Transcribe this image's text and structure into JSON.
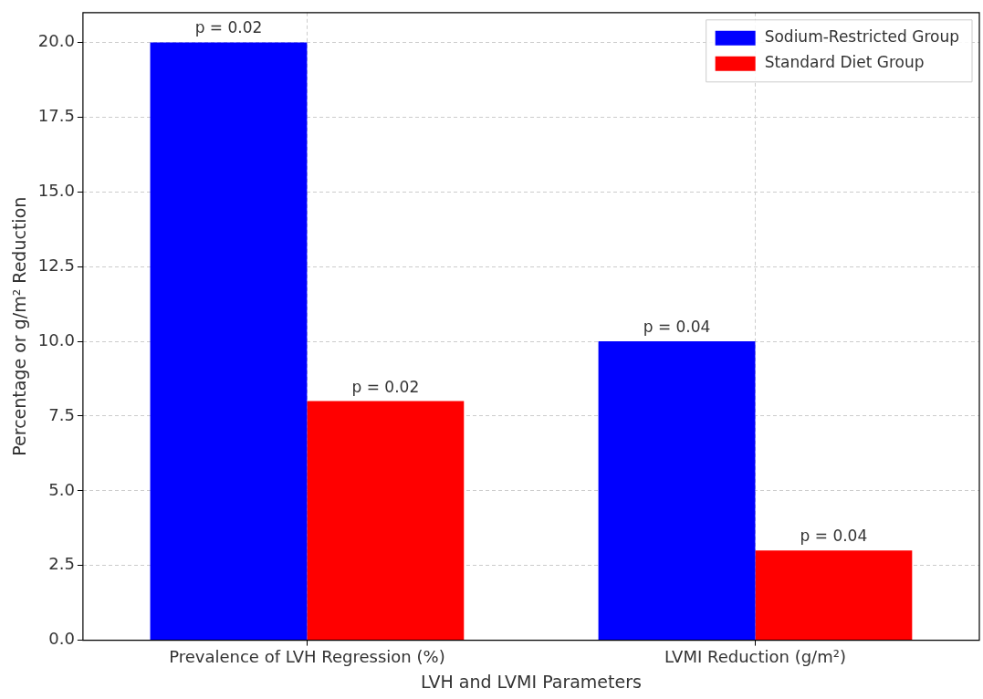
{
  "chart_data": {
    "type": "bar",
    "xlabel": "LVH and LVMI Parameters",
    "ylabel": "Percentage or g/m² Reduction",
    "categories": [
      "Prevalence of LVH Regression (%)",
      "LVMI Reduction (g/m²)"
    ],
    "series": [
      {
        "name": "Sodium-Restricted Group",
        "color": "#0000ff",
        "values": [
          20,
          10
        ]
      },
      {
        "name": "Standard Diet Group",
        "color": "#ff0000",
        "values": [
          8,
          3
        ]
      }
    ],
    "annotations": [
      {
        "text": "p = 0.02",
        "x": "Prevalence of LVH Regression (%)",
        "y": 20
      },
      {
        "text": "p = 0.02",
        "x": "Prevalence of LVH Regression (%)",
        "y": 8
      },
      {
        "text": "p = 0.04",
        "x": "LVMI Reduction (g/m²)",
        "y": 10
      },
      {
        "text": "p = 0.04",
        "x": "LVMI Reduction (g/m²)",
        "y": 3
      }
    ],
    "ylim": [
      0,
      21
    ],
    "yticks": [
      {
        "value": 0,
        "label": "0.0"
      },
      {
        "value": 2.5,
        "label": "2.5"
      },
      {
        "value": 5,
        "label": "5.0"
      },
      {
        "value": 7.5,
        "label": "7.5"
      },
      {
        "value": 10,
        "label": "10.0"
      },
      {
        "value": 12.5,
        "label": "12.5"
      },
      {
        "value": 15,
        "label": "15.0"
      },
      {
        "value": 17.5,
        "label": "17.5"
      },
      {
        "value": 20,
        "label": "20.0"
      }
    ],
    "grid": true,
    "legend": "top right"
  }
}
